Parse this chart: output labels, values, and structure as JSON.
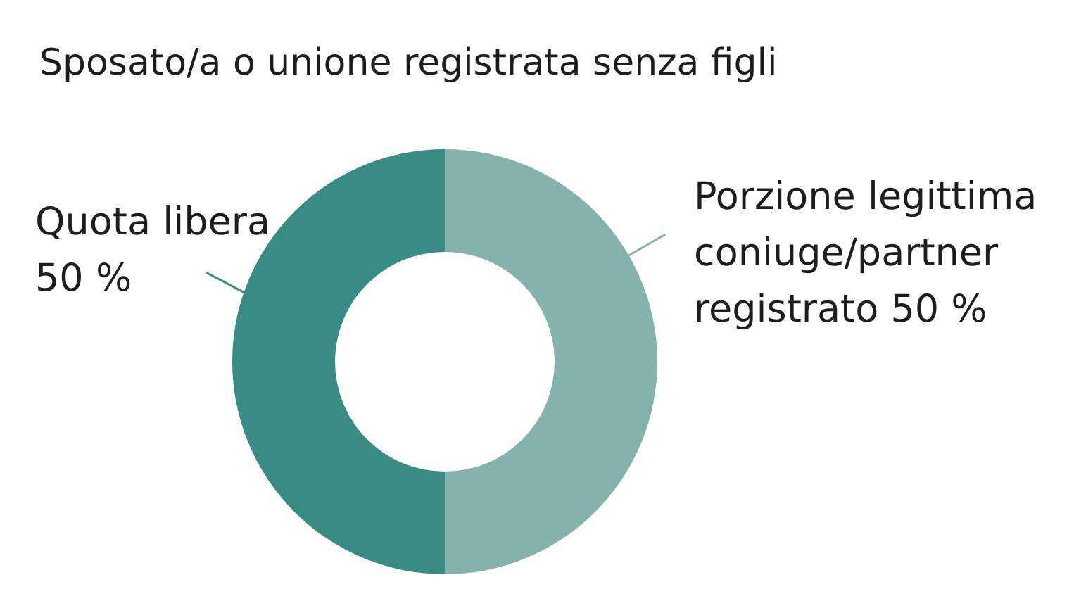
{
  "chart_data": {
    "type": "donut",
    "title": "Sposato/a o unione registrata senza figli",
    "categories": [
      "Quota libera",
      "Porzione legittima coniuge/partner registrato"
    ],
    "values": [
      50,
      50
    ],
    "value_labels": [
      "50 %",
      "50 %"
    ],
    "colors": [
      "#388c84",
      "#85b2ac"
    ]
  }
}
